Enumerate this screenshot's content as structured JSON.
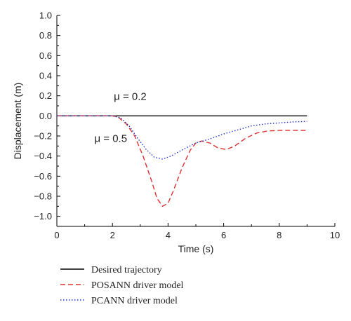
{
  "chart_data": {
    "type": "line",
    "xlabel": "Time (s)",
    "ylabel": "Displacement (m)",
    "xlim": [
      0,
      10
    ],
    "ylim": [
      -1.1,
      1.0
    ],
    "x_ticks": [
      0,
      2,
      4,
      6,
      8,
      10
    ],
    "x_tick_labels": [
      "0",
      "2",
      "4",
      "6",
      "8",
      "10"
    ],
    "y_ticks": [
      1.0,
      0.8,
      0.6,
      0.4,
      0.2,
      0.0,
      -0.2,
      -0.4,
      -0.6,
      -0.8,
      -1.0
    ],
    "y_tick_labels": [
      "1.0",
      "0.8",
      "0.6",
      "0.4",
      "0.2",
      "0.0",
      "−0.2",
      "−0.4",
      "−0.6",
      "−0.8",
      "−1.0"
    ],
    "grid": false,
    "legend_position": "below-left",
    "annotations": [
      {
        "text": "μ = 0.2",
        "x": 2.05,
        "y": 0.16
      },
      {
        "text": "μ = 0.5",
        "x": 1.35,
        "y": -0.26
      }
    ],
    "series": [
      {
        "name": "Desired trajectory",
        "style": "solid",
        "color": "#000000",
        "points": [
          [
            0,
            0.0
          ],
          [
            9.0,
            0.0
          ]
        ]
      },
      {
        "name": "POSANN driver model",
        "style": "dashed",
        "color": "#e03030",
        "points": [
          [
            0,
            0.0
          ],
          [
            2.0,
            0.0
          ],
          [
            2.2,
            -0.01
          ],
          [
            2.5,
            -0.08
          ],
          [
            2.8,
            -0.2
          ],
          [
            3.1,
            -0.4
          ],
          [
            3.4,
            -0.64
          ],
          [
            3.6,
            -0.82
          ],
          [
            3.8,
            -0.9
          ],
          [
            4.0,
            -0.87
          ],
          [
            4.2,
            -0.74
          ],
          [
            4.5,
            -0.52
          ],
          [
            4.8,
            -0.34
          ],
          [
            5.0,
            -0.27
          ],
          [
            5.2,
            -0.25
          ],
          [
            5.5,
            -0.27
          ],
          [
            5.8,
            -0.32
          ],
          [
            6.1,
            -0.335
          ],
          [
            6.4,
            -0.3
          ],
          [
            6.8,
            -0.22
          ],
          [
            7.2,
            -0.17
          ],
          [
            7.6,
            -0.15
          ],
          [
            8.0,
            -0.145
          ],
          [
            9.0,
            -0.145
          ]
        ]
      },
      {
        "name": "PCANN driver model",
        "style": "dotted",
        "color": "#2233cc",
        "points": [
          [
            0,
            0.0
          ],
          [
            2.0,
            0.0
          ],
          [
            2.3,
            -0.02
          ],
          [
            2.6,
            -0.1
          ],
          [
            2.9,
            -0.22
          ],
          [
            3.2,
            -0.33
          ],
          [
            3.5,
            -0.41
          ],
          [
            3.8,
            -0.43
          ],
          [
            4.1,
            -0.4
          ],
          [
            4.5,
            -0.34
          ],
          [
            5.0,
            -0.27
          ],
          [
            5.5,
            -0.23
          ],
          [
            6.0,
            -0.18
          ],
          [
            6.5,
            -0.14
          ],
          [
            7.0,
            -0.1
          ],
          [
            7.5,
            -0.08
          ],
          [
            8.0,
            -0.07
          ],
          [
            8.5,
            -0.06
          ],
          [
            9.0,
            -0.055
          ]
        ]
      }
    ]
  }
}
